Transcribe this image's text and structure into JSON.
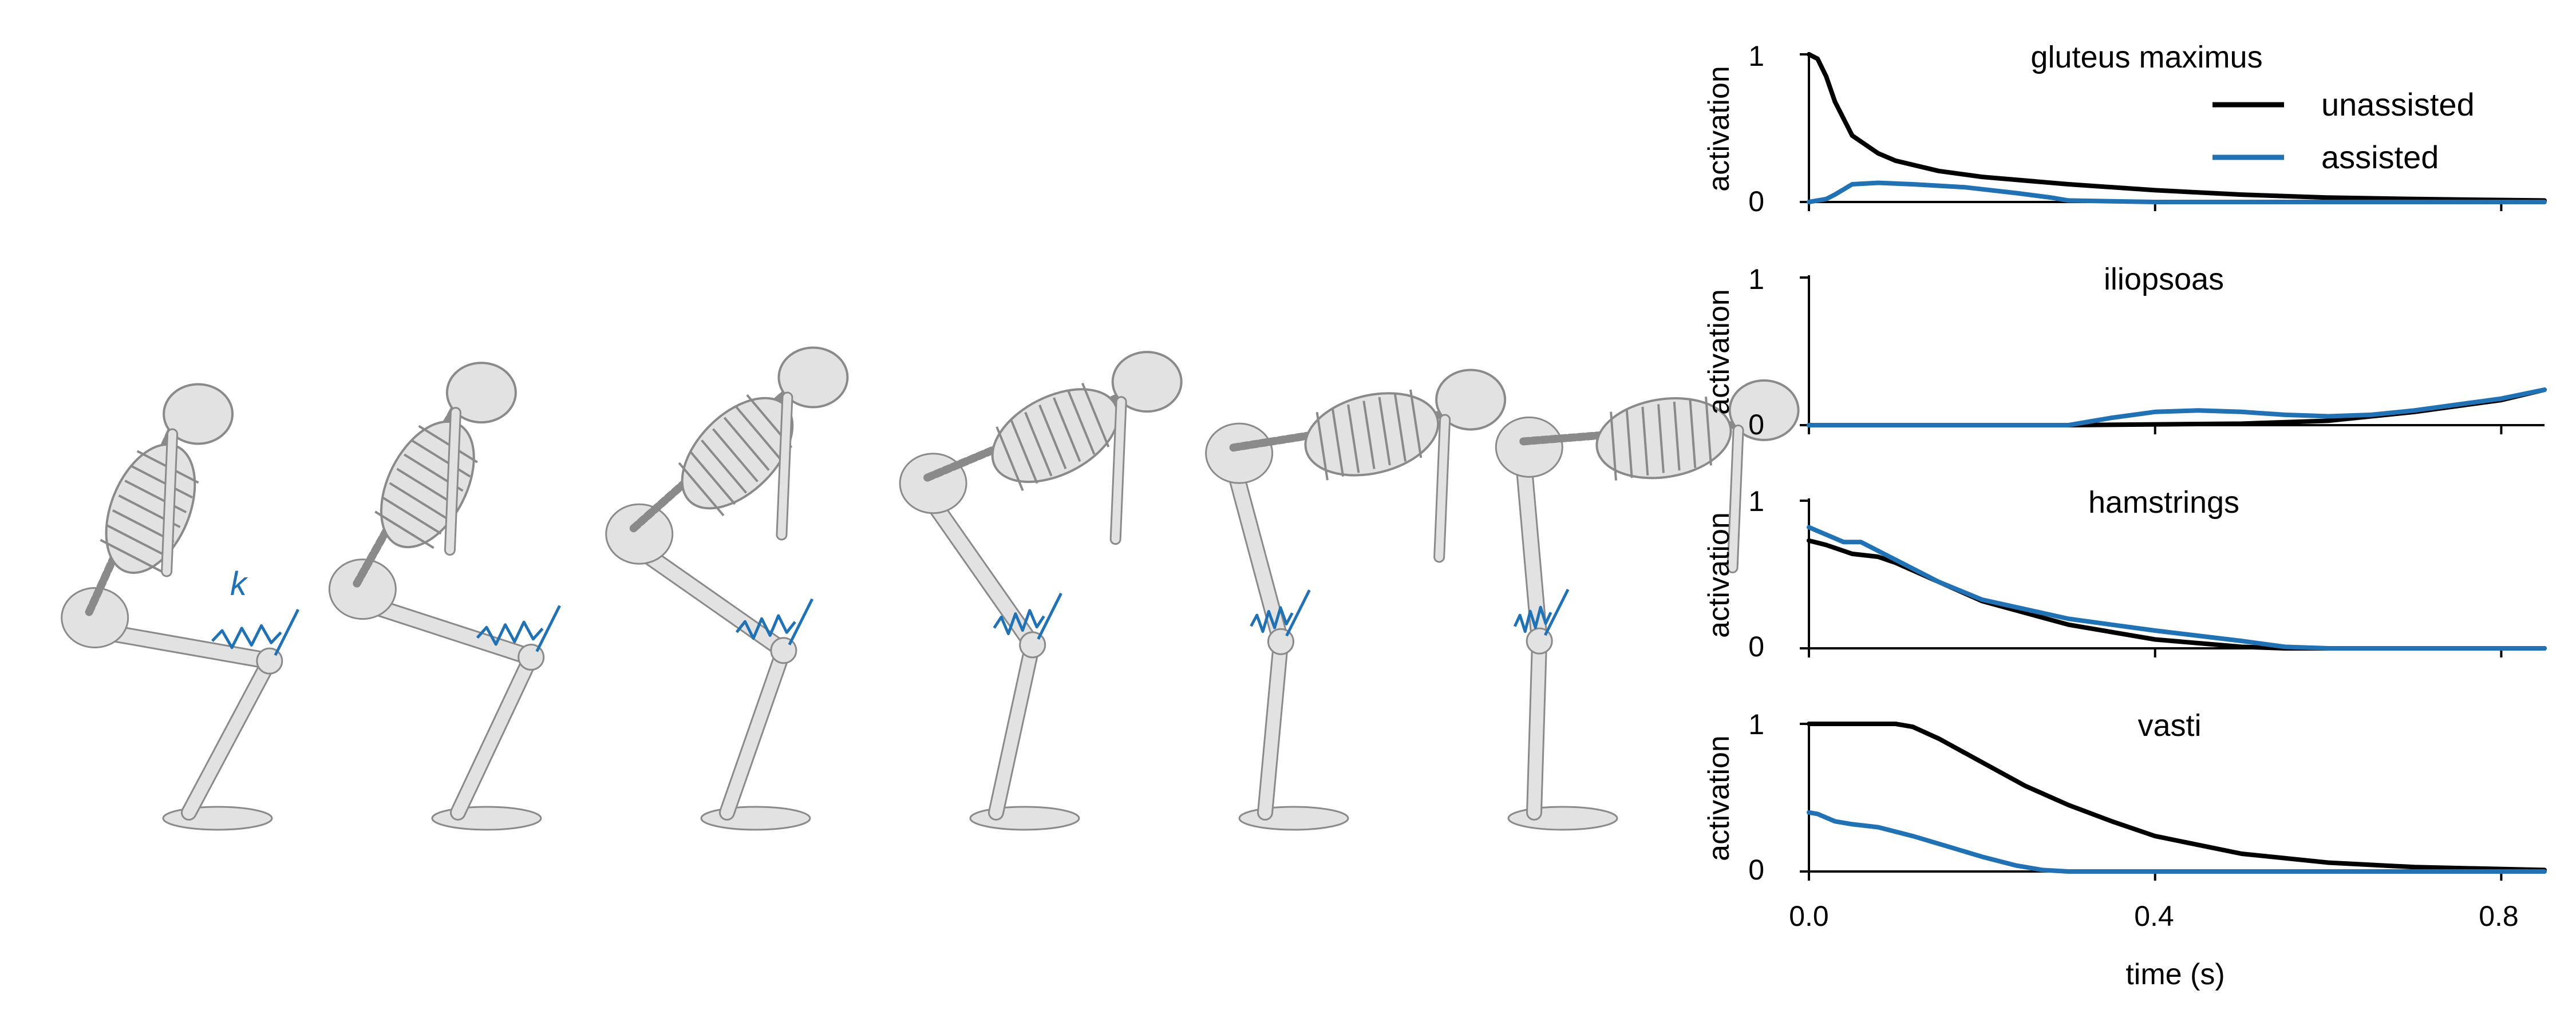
{
  "colors": {
    "unassisted": "#000000",
    "assisted": "#2171b5",
    "bone_fill": "#e2e2e2",
    "bone_stroke": "#8a8a8a"
  },
  "illustration": {
    "spring_label": "k",
    "poses": [
      {
        "hip_angle_deg": 155,
        "knee_flex_deg": 80,
        "spring_compression": 1.0
      },
      {
        "hip_angle_deg": 150,
        "knee_flex_deg": 72,
        "spring_compression": 0.9
      },
      {
        "hip_angle_deg": 130,
        "knee_flex_deg": 55,
        "spring_compression": 0.7
      },
      {
        "hip_angle_deg": 110,
        "knee_flex_deg": 35,
        "spring_compression": 0.45
      },
      {
        "hip_angle_deg": 95,
        "knee_flex_deg": 15,
        "spring_compression": 0.2
      },
      {
        "hip_angle_deg": 90,
        "knee_flex_deg": 5,
        "spring_compression": 0.05
      }
    ]
  },
  "legend": {
    "unassisted": "unassisted",
    "assisted": "assisted"
  },
  "chart_data": {
    "type": "line",
    "xlabel": "time (s)",
    "ylabel": "activation",
    "xlim": [
      0,
      0.85
    ],
    "ylim": [
      0,
      1
    ],
    "xticks": [
      "0.0",
      "0.4",
      "0.8"
    ],
    "xtick_values": [
      0,
      0.4,
      0.8
    ],
    "yticks": [
      "0",
      "1"
    ],
    "ytick_values": [
      0,
      1
    ],
    "panels": [
      {
        "title": "gluteus maximus",
        "series": [
          {
            "name": "unassisted",
            "x": [
              0,
              0.01,
              0.02,
              0.03,
              0.05,
              0.08,
              0.1,
              0.15,
              0.2,
              0.3,
              0.4,
              0.5,
              0.6,
              0.7,
              0.85
            ],
            "y": [
              1.0,
              0.97,
              0.85,
              0.68,
              0.45,
              0.33,
              0.28,
              0.21,
              0.17,
              0.12,
              0.08,
              0.05,
              0.03,
              0.02,
              0.01
            ]
          },
          {
            "name": "assisted",
            "x": [
              0,
              0.02,
              0.03,
              0.05,
              0.08,
              0.12,
              0.18,
              0.24,
              0.28,
              0.3,
              0.4,
              0.85
            ],
            "y": [
              0.0,
              0.02,
              0.05,
              0.12,
              0.13,
              0.12,
              0.1,
              0.06,
              0.03,
              0.01,
              0.0,
              0.0
            ]
          }
        ]
      },
      {
        "title": "iliopsoas",
        "series": [
          {
            "name": "unassisted",
            "x": [
              0,
              0.3,
              0.5,
              0.6,
              0.7,
              0.8,
              0.85
            ],
            "y": [
              0.0,
              0.0,
              0.01,
              0.03,
              0.09,
              0.17,
              0.24
            ]
          },
          {
            "name": "assisted",
            "x": [
              0,
              0.3,
              0.35,
              0.4,
              0.45,
              0.5,
              0.55,
              0.6,
              0.65,
              0.7,
              0.8,
              0.85
            ],
            "y": [
              0.0,
              0.0,
              0.05,
              0.09,
              0.1,
              0.09,
              0.07,
              0.06,
              0.07,
              0.1,
              0.18,
              0.24
            ]
          }
        ]
      },
      {
        "title": "hamstrings",
        "series": [
          {
            "name": "unassisted",
            "x": [
              0,
              0.02,
              0.05,
              0.08,
              0.1,
              0.15,
              0.2,
              0.3,
              0.4,
              0.5,
              0.55,
              0.85
            ],
            "y": [
              0.73,
              0.7,
              0.64,
              0.62,
              0.58,
              0.45,
              0.32,
              0.16,
              0.06,
              0.01,
              0.0,
              0.0
            ]
          },
          {
            "name": "assisted",
            "x": [
              0,
              0.02,
              0.04,
              0.06,
              0.1,
              0.15,
              0.2,
              0.3,
              0.4,
              0.5,
              0.55,
              0.6,
              0.85
            ],
            "y": [
              0.82,
              0.77,
              0.72,
              0.72,
              0.6,
              0.45,
              0.33,
              0.2,
              0.12,
              0.05,
              0.01,
              0.0,
              0.0
            ]
          }
        ]
      },
      {
        "title": "vasti",
        "series": [
          {
            "name": "unassisted",
            "x": [
              0,
              0.1,
              0.12,
              0.15,
              0.2,
              0.25,
              0.3,
              0.35,
              0.4,
              0.5,
              0.6,
              0.7,
              0.85
            ],
            "y": [
              1.0,
              1.0,
              0.98,
              0.9,
              0.74,
              0.58,
              0.45,
              0.34,
              0.24,
              0.12,
              0.06,
              0.03,
              0.01
            ]
          },
          {
            "name": "assisted",
            "x": [
              0,
              0.01,
              0.03,
              0.05,
              0.08,
              0.12,
              0.16,
              0.2,
              0.24,
              0.27,
              0.3,
              0.85
            ],
            "y": [
              0.4,
              0.39,
              0.34,
              0.32,
              0.3,
              0.24,
              0.17,
              0.1,
              0.04,
              0.01,
              0.0,
              0.0
            ]
          }
        ]
      }
    ]
  }
}
